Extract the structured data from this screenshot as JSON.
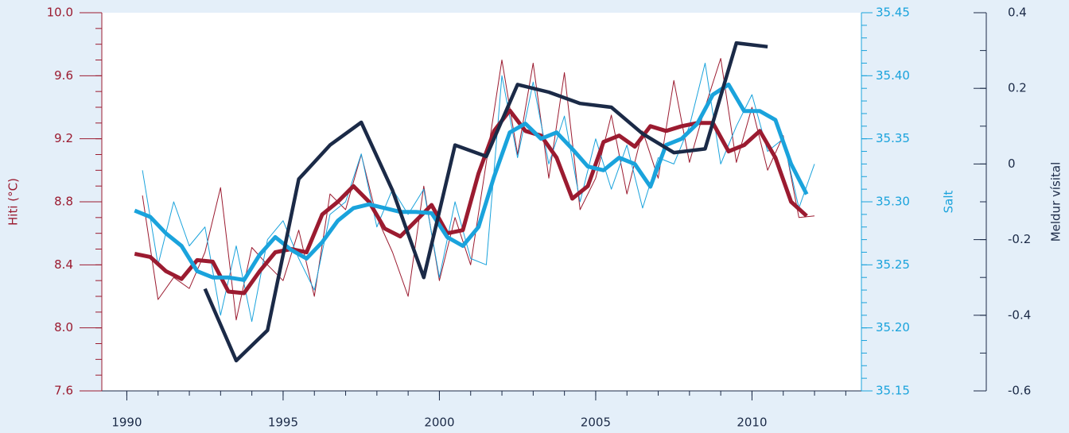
{
  "chart_data": {
    "type": "line",
    "xlim": [
      1989.2,
      2013.5
    ],
    "xticks": [
      1990,
      1995,
      2000,
      2005,
      2010
    ],
    "xminor": 1,
    "ylim": [
      7.6,
      10.0
    ],
    "yticks": [
      {
        "value": 7.6,
        "label": "7.6"
      },
      {
        "value": 8.0,
        "label": "8.0"
      },
      8.4,
      8.8,
      9.2,
      9.6,
      {
        "value": 10.0,
        "label": "10.0"
      }
    ],
    "yminor": 0.1,
    "ylabel": "Hiti (°C)",
    "ycolor": "#9b1b30",
    "y2lim": [
      35.15,
      35.45
    ],
    "y2ticks": [
      35.15,
      {
        "value": 35.2,
        "label": "35.20"
      },
      35.25,
      {
        "value": 35.3,
        "label": "35.30"
      },
      35.35,
      {
        "value": 35.4,
        "label": "35.40"
      },
      35.45
    ],
    "y2minor": 0.01,
    "y2label": "Salt",
    "y2color": "#1aa3dc",
    "y3lim": [
      -0.6,
      0.4
    ],
    "y3ticks": [
      -0.6,
      -0.4,
      -0.2,
      0,
      0.2,
      0.4
    ],
    "y3minor": 0.1,
    "y3label": "Meldur vísital",
    "y3color": "#1b2a47",
    "series": [
      {
        "color": "#9b1b30",
        "width": 1,
        "x": [
          1990.5,
          1991,
          1991.5,
          1992,
          1992.5,
          1993,
          1993.5,
          1994,
          1994.5,
          1995,
          1995.5,
          1996,
          1996.5,
          1997,
          1997.5,
          1998,
          1998.5,
          1999,
          1999.5,
          2000,
          2000.5,
          2001,
          2001.5,
          2002,
          2002.5,
          2003,
          2003.5,
          2004,
          2004.5,
          2005,
          2005.5,
          2006,
          2006.5,
          2007,
          2007.5,
          2008,
          2008.5,
          2009,
          2009.5,
          2010,
          2010.5,
          2011,
          2011.5,
          2012
        ],
        "values": [
          8.84,
          8.18,
          8.32,
          8.25,
          8.48,
          8.89,
          8.05,
          8.51,
          8.4,
          8.3,
          8.62,
          8.2,
          8.85,
          8.75,
          9.1,
          8.7,
          8.48,
          8.2,
          8.9,
          8.3,
          8.7,
          8.4,
          9.05,
          9.7,
          9.1,
          9.68,
          8.95,
          9.62,
          8.75,
          8.95,
          9.35,
          8.85,
          9.25,
          8.95,
          9.57,
          9.05,
          9.4,
          9.71,
          9.05,
          9.4,
          9.0,
          9.22,
          8.7,
          8.71
        ]
      },
      {
        "color": "#1aa3dc",
        "width": 1,
        "axis": "y2",
        "x": [
          1990.5,
          1991,
          1991.5,
          1992,
          1992.5,
          1993,
          1993.5,
          1994,
          1994.5,
          1995,
          1995.5,
          1996,
          1996.5,
          1997,
          1997.5,
          1998,
          1998.5,
          1999,
          1999.5,
          2000,
          2000.5,
          2001,
          2001.5,
          2002,
          2002.5,
          2003,
          2003.5,
          2004,
          2004.5,
          2005,
          2005.5,
          2006,
          2006.5,
          2007,
          2007.5,
          2008,
          2008.5,
          2009,
          2009.5,
          2010,
          2010.5,
          2011,
          2011.5,
          2012
        ],
        "values": [
          35.325,
          35.25,
          35.3,
          35.265,
          35.28,
          35.21,
          35.265,
          35.205,
          35.27,
          35.285,
          35.255,
          35.23,
          35.29,
          35.3,
          35.338,
          35.28,
          35.31,
          35.29,
          35.31,
          35.24,
          35.3,
          35.255,
          35.25,
          35.4,
          35.335,
          35.395,
          35.33,
          35.368,
          35.3,
          35.35,
          35.31,
          35.345,
          35.295,
          35.335,
          35.33,
          35.36,
          35.41,
          35.33,
          35.36,
          35.385,
          35.34,
          35.35,
          35.295,
          35.33
        ]
      },
      {
        "color": "#9b1b30",
        "width": 5,
        "x": [
          1990.25,
          1990.75,
          1991.25,
          1991.75,
          1992.25,
          1992.75,
          1993.25,
          1993.75,
          1994.25,
          1994.75,
          1995.25,
          1995.75,
          1996.25,
          1996.75,
          1997.25,
          1997.75,
          1998.25,
          1998.75,
          1999.25,
          1999.75,
          2000.25,
          2000.75,
          2001.25,
          2001.75,
          2002.25,
          2002.75,
          2003.25,
          2003.75,
          2004.25,
          2004.75,
          2005.25,
          2005.75,
          2006.25,
          2006.75,
          2007.25,
          2007.75,
          2008.25,
          2008.75,
          2009.25,
          2009.75,
          2010.25,
          2010.75,
          2011.25,
          2011.75
        ],
        "values": [
          8.47,
          8.45,
          8.36,
          8.31,
          8.43,
          8.42,
          8.23,
          8.22,
          8.36,
          8.48,
          8.5,
          8.48,
          8.72,
          8.8,
          8.9,
          8.8,
          8.63,
          8.58,
          8.68,
          8.78,
          8.6,
          8.62,
          8.98,
          9.25,
          9.38,
          9.25,
          9.22,
          9.08,
          8.82,
          8.9,
          9.18,
          9.22,
          9.15,
          9.28,
          9.25,
          9.28,
          9.3,
          9.3,
          9.12,
          9.16,
          9.25,
          9.08,
          8.8,
          8.71
        ]
      },
      {
        "color": "#1aa3dc",
        "width": 5,
        "axis": "y2",
        "x": [
          1990.25,
          1990.75,
          1991.25,
          1991.75,
          1992.25,
          1992.75,
          1993.25,
          1993.75,
          1994.25,
          1994.75,
          1995.25,
          1995.75,
          1996.25,
          1996.75,
          1997.25,
          1997.75,
          1998.25,
          1998.75,
          1999.25,
          1999.75,
          2000.25,
          2000.75,
          2001.25,
          2001.75,
          2002.25,
          2002.75,
          2003.25,
          2003.75,
          2004.25,
          2004.75,
          2005.25,
          2005.75,
          2006.25,
          2006.75,
          2007.25,
          2007.75,
          2008.25,
          2008.75,
          2009.25,
          2009.75,
          2010.25,
          2010.75,
          2011.25,
          2011.75
        ],
        "values": [
          35.293,
          35.288,
          35.275,
          35.265,
          35.245,
          35.24,
          35.24,
          35.238,
          35.258,
          35.272,
          35.262,
          35.255,
          35.268,
          35.285,
          35.295,
          35.298,
          35.295,
          35.292,
          35.292,
          35.291,
          35.272,
          35.265,
          35.28,
          35.32,
          35.355,
          35.362,
          35.35,
          35.355,
          35.342,
          35.328,
          35.325,
          35.335,
          35.33,
          35.312,
          35.345,
          35.35,
          35.362,
          35.385,
          35.393,
          35.372,
          35.372,
          35.365,
          35.33,
          35.306
        ]
      },
      {
        "color": "#1b2a47",
        "width": 4.5,
        "axis": "y3",
        "x": [
          1992.5,
          1993.5,
          1994.5,
          1995.5,
          1996.5,
          1997.5,
          1998.5,
          1999.5,
          2000.5,
          2001.5,
          2002.5,
          2003.5,
          2004.5,
          2005.5,
          2006.5,
          2007.5,
          2008.5,
          2009.5,
          2010.5
        ],
        "values": [
          -0.33,
          -0.52,
          -0.44,
          -0.04,
          0.05,
          0.11,
          -0.07,
          -0.3,
          0.05,
          0.02,
          0.21,
          0.19,
          0.16,
          0.15,
          0.08,
          0.03,
          0.04,
          0.32,
          0.31
        ]
      }
    ]
  }
}
